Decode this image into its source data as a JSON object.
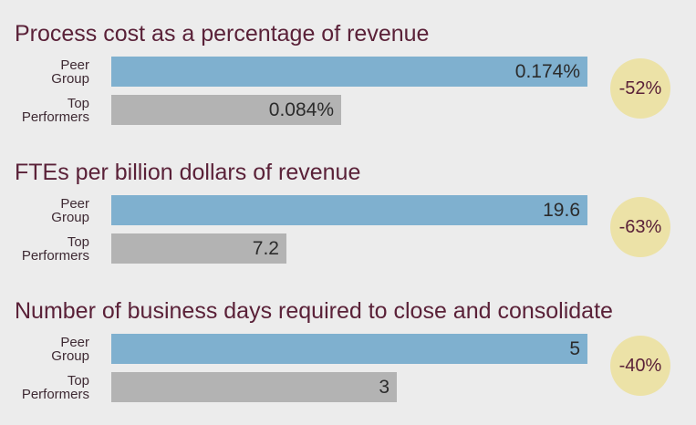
{
  "chart_data": [
    {
      "type": "bar",
      "title": "Process cost as a percentage of revenue",
      "categories": [
        "Peer Group",
        "Top Performers"
      ],
      "values": [
        0.174,
        0.084
      ],
      "value_labels": [
        "0.174%",
        "0.084%"
      ],
      "unit": "%",
      "change": "-52%",
      "colors": [
        "#7fb0cf",
        "#b3b3b3"
      ]
    },
    {
      "type": "bar",
      "title": "FTEs per billion dollars of revenue",
      "categories": [
        "Peer Group",
        "Top Performers"
      ],
      "values": [
        19.6,
        7.2
      ],
      "value_labels": [
        "19.6",
        "7.2"
      ],
      "change": "-63%",
      "colors": [
        "#7fb0cf",
        "#b3b3b3"
      ]
    },
    {
      "type": "bar",
      "title": "Number of business days required to close and consolidate",
      "categories": [
        "Peer Group",
        "Top Performers"
      ],
      "values": [
        5,
        3
      ],
      "value_labels": [
        "5",
        "3"
      ],
      "change": "-40%",
      "colors": [
        "#7fb0cf",
        "#b3b3b3"
      ]
    }
  ],
  "labels": {
    "peer": [
      "Peer",
      "Group"
    ],
    "top": [
      "Top",
      "Performers"
    ]
  },
  "colors": {
    "title": "#5a2138",
    "badge": "#ece2a7",
    "background": "#ececec"
  }
}
